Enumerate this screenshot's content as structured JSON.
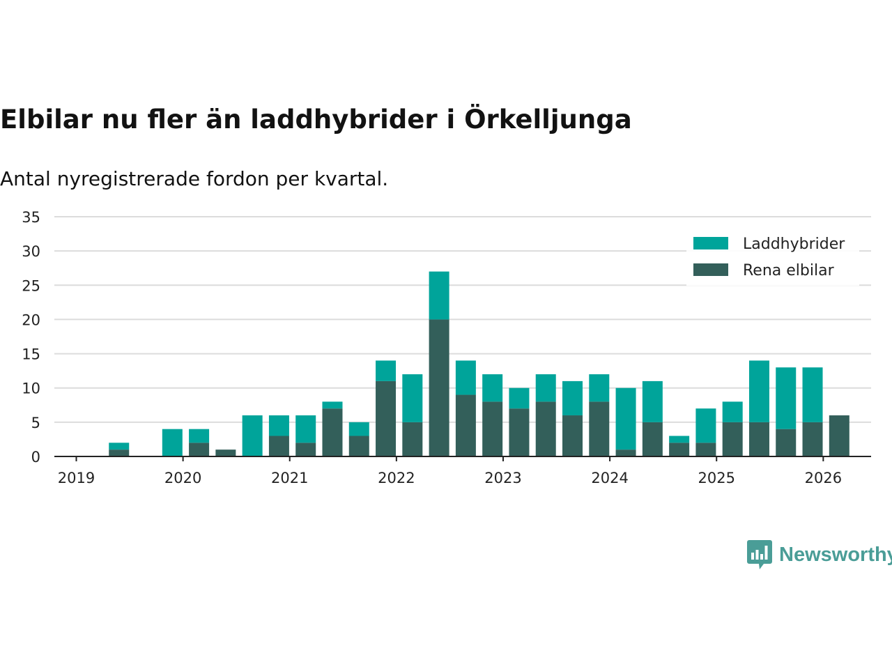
{
  "header": {
    "title": "Elbilar nu fler än laddhybrider i Örkelljunga",
    "subtitle": "Antal nyregistrerade fordon per kvartal."
  },
  "brand": {
    "name": "Newsworthy",
    "color": "#4a9d97",
    "icon": "bar-chart-bubble-icon"
  },
  "chart_data": {
    "type": "bar",
    "stacked": true,
    "title": "Elbilar nu fler än laddhybrider i Örkelljunga",
    "subtitle": "Antal nyregistrerade fordon per kvartal.",
    "xlabel": "",
    "ylabel": "",
    "ylim": [
      0,
      35
    ],
    "yticks": [
      0,
      5,
      10,
      15,
      20,
      25,
      30,
      35
    ],
    "grid": true,
    "legend_position": "top-right",
    "year_ticks": [
      "2019",
      "2020",
      "2021",
      "2022",
      "2023",
      "2024",
      "2025",
      "2026"
    ],
    "categories": [
      "2019 Q1",
      "2019 Q2",
      "2019 Q3",
      "2019 Q4",
      "2020 Q1",
      "2020 Q2",
      "2020 Q3",
      "2020 Q4",
      "2021 Q1",
      "2021 Q2",
      "2021 Q3",
      "2021 Q4",
      "2022 Q1",
      "2022 Q2",
      "2022 Q3",
      "2022 Q4",
      "2023 Q1",
      "2023 Q2",
      "2023 Q3",
      "2023 Q4",
      "2024 Q1",
      "2024 Q2",
      "2024 Q3",
      "2024 Q4",
      "2025 Q1",
      "2025 Q2",
      "2025 Q3",
      "2025 Q4",
      "2026 Q1"
    ],
    "series": [
      {
        "name": "Rena elbilar",
        "color": "#335f5a",
        "values": [
          0,
          1,
          0,
          0,
          2,
          1,
          0,
          3,
          2,
          7,
          3,
          11,
          5,
          20,
          9,
          8,
          7,
          8,
          6,
          8,
          1,
          5,
          2,
          2,
          5,
          5,
          4,
          5,
          6
        ]
      },
      {
        "name": "Laddhybrider",
        "color": "#00a49a",
        "values": [
          0,
          1,
          0,
          4,
          2,
          0,
          6,
          3,
          4,
          1,
          2,
          3,
          7,
          7,
          5,
          4,
          3,
          4,
          5,
          4,
          9,
          6,
          1,
          5,
          3,
          9,
          9,
          8,
          0
        ]
      }
    ]
  }
}
